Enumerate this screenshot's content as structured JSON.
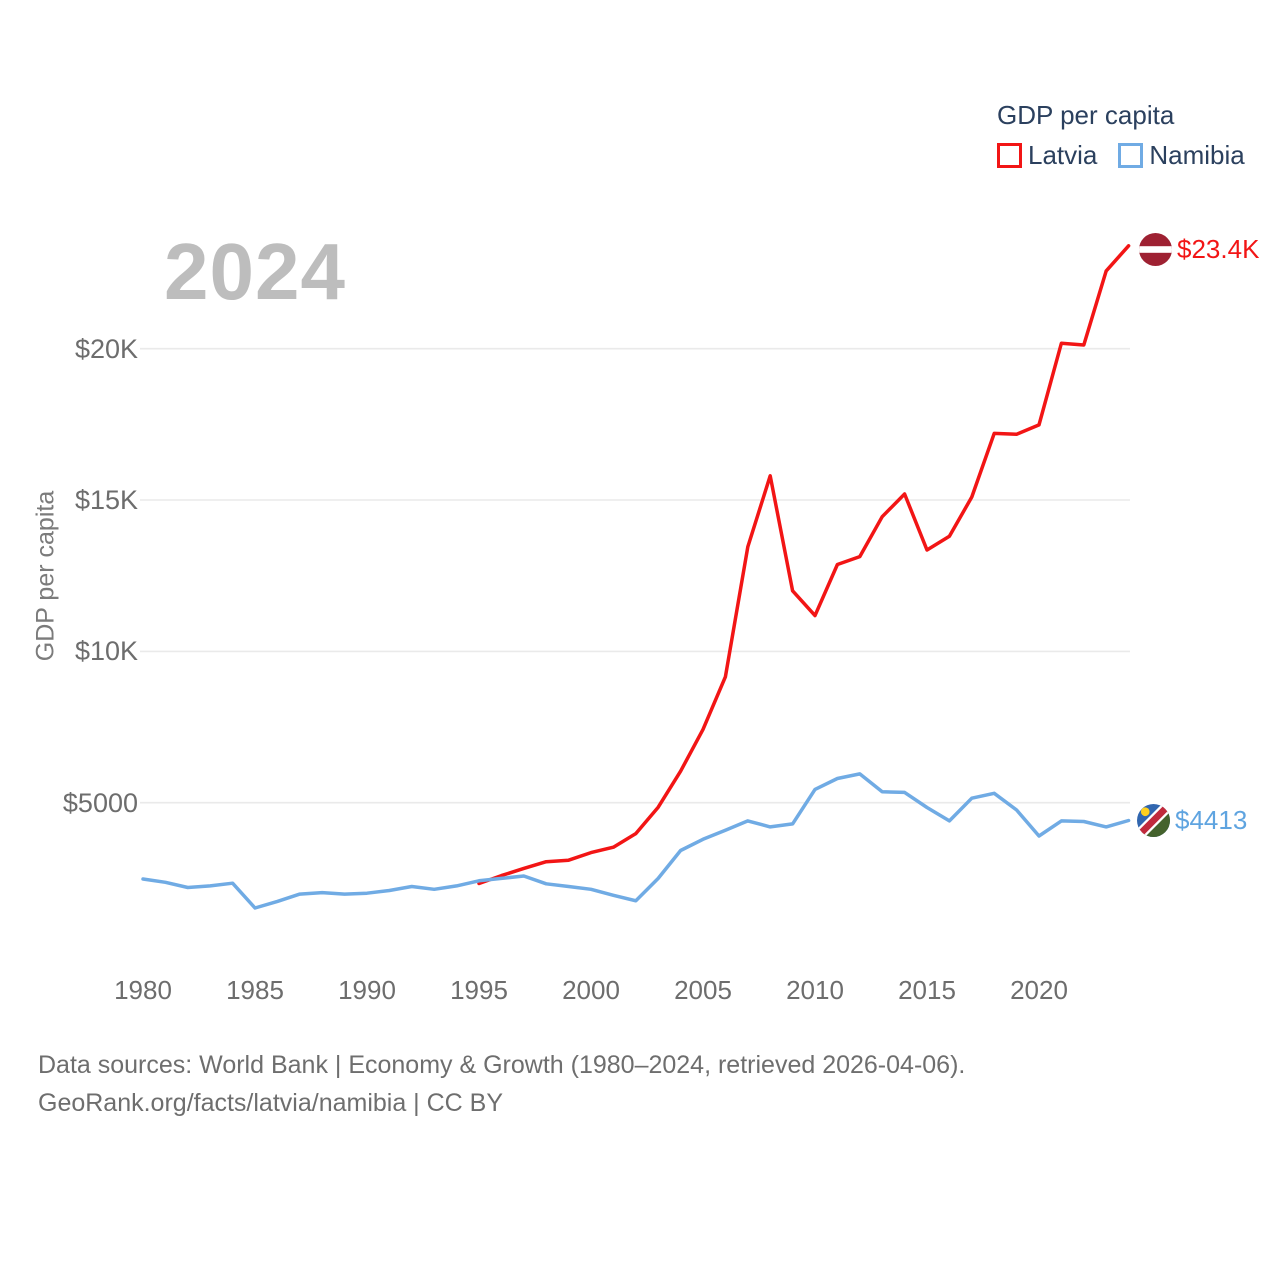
{
  "watermark_year": "2024",
  "legend": {
    "title": "GDP per capita",
    "items": [
      {
        "label": "Latvia",
        "color": "#f21515"
      },
      {
        "label": "Namibia",
        "color": "#70abe4"
      }
    ]
  },
  "y_axis": {
    "title": "GDP per capita",
    "ticks": [
      {
        "value": 5000,
        "label": "$5000"
      },
      {
        "value": 10000,
        "label": "$10K"
      },
      {
        "value": 15000,
        "label": "$15K"
      },
      {
        "value": 20000,
        "label": "$20K"
      }
    ]
  },
  "x_axis": {
    "ticks": [
      {
        "value": 1980,
        "label": "1980"
      },
      {
        "value": 1985,
        "label": "1985"
      },
      {
        "value": 1990,
        "label": "1990"
      },
      {
        "value": 1995,
        "label": "1995"
      },
      {
        "value": 2000,
        "label": "2000"
      },
      {
        "value": 2005,
        "label": "2005"
      },
      {
        "value": 2010,
        "label": "2010"
      },
      {
        "value": 2015,
        "label": "2015"
      },
      {
        "value": 2020,
        "label": "2020"
      }
    ]
  },
  "end_labels": {
    "latvia": "$23.4K",
    "namibia": "$4413"
  },
  "footer": {
    "line1": "Data sources: World Bank | Economy & Growth (1980–2024, retrieved 2026-04-06).",
    "line2": "GeoRank.org/facts/latvia/namibia | CC BY"
  },
  "chart_data": {
    "type": "line",
    "title": "GDP per capita",
    "xlabel": "",
    "ylabel": "GDP per capita",
    "x_range": [
      1980,
      2024
    ],
    "ylim": [
      0,
      24500
    ],
    "grid": "horizontal-only",
    "legend_position": "top-right",
    "series": [
      {
        "name": "Latvia",
        "color": "#f21515",
        "end_label": "$23.4K",
        "years": [
          1995,
          1996,
          1997,
          1998,
          1999,
          2000,
          2001,
          2002,
          2003,
          2004,
          2005,
          2006,
          2007,
          2008,
          2009,
          2010,
          2011,
          2012,
          2013,
          2014,
          2015,
          2016,
          2017,
          2018,
          2019,
          2020,
          2021,
          2022,
          2023,
          2024
        ],
        "values": [
          2330,
          2590,
          2830,
          3050,
          3100,
          3350,
          3530,
          3980,
          4850,
          6040,
          7420,
          9160,
          13450,
          15800,
          12000,
          11180,
          12870,
          13130,
          14450,
          15200,
          13350,
          13800,
          15100,
          17200,
          17170,
          17480,
          20180,
          20120,
          22570,
          23400
        ]
      },
      {
        "name": "Namibia",
        "color": "#70abe4",
        "end_label": "$4413",
        "years": [
          1980,
          1981,
          1982,
          1983,
          1984,
          1985,
          1986,
          1987,
          1988,
          1989,
          1990,
          1991,
          1992,
          1993,
          1994,
          1995,
          1996,
          1997,
          1998,
          1999,
          2000,
          2001,
          2002,
          2003,
          2004,
          2005,
          2006,
          2007,
          2008,
          2009,
          2010,
          2011,
          2012,
          2013,
          2014,
          2015,
          2016,
          2017,
          2018,
          2019,
          2020,
          2021,
          2022,
          2023,
          2024
        ],
        "values": [
          2480,
          2370,
          2200,
          2250,
          2340,
          1520,
          1740,
          1980,
          2030,
          1980,
          2010,
          2100,
          2230,
          2140,
          2250,
          2420,
          2500,
          2580,
          2320,
          2230,
          2140,
          1940,
          1760,
          2500,
          3420,
          3790,
          4090,
          4400,
          4200,
          4300,
          5440,
          5800,
          5950,
          5360,
          5340,
          4840,
          4400,
          5150,
          5310,
          4760,
          3900,
          4400,
          4380,
          4200,
          4413
        ]
      }
    ]
  }
}
